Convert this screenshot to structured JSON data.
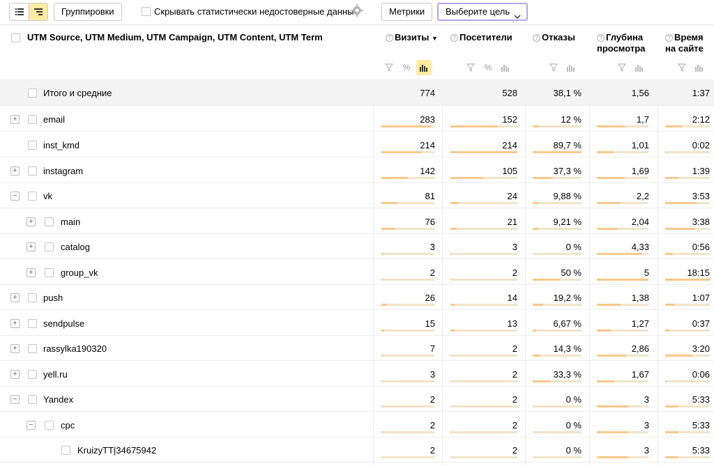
{
  "toolbar": {
    "groupings_label": "Группировки",
    "hide_unreliable_label": "Скрывать статистически недостоверные данные",
    "metrics_label": "Метрики",
    "goal_label": "Выберите цель"
  },
  "table": {
    "dimension_header": "UTM Source, UTM Medium, UTM Campaign, UTM Content, UTM Term",
    "columns": [
      {
        "label": "Визиты",
        "sort": "▼"
      },
      {
        "label": "Посетители"
      },
      {
        "label": "Отказы"
      },
      {
        "label": "Глубина просмотра",
        "line1": "Глубина",
        "line2": "просмотра"
      },
      {
        "label": "Время на сайте",
        "line1": "Время",
        "line2": "на сайте"
      }
    ],
    "total": {
      "label": "Итого и средние",
      "visits": "774",
      "visitors": "528",
      "bounce": "38,1 %",
      "depth": "1,56",
      "time": "1:37"
    },
    "rows": [
      {
        "label": "email",
        "visits": "283",
        "visitors": "152",
        "bounce": "12 %",
        "depth": "1,7",
        "time": "2:12"
      },
      {
        "label": "inst_kmd",
        "visits": "214",
        "visitors": "214",
        "bounce": "89,7 %",
        "depth": "1,01",
        "time": "0:02"
      },
      {
        "label": "instagram",
        "visits": "142",
        "visitors": "105",
        "bounce": "37,3 %",
        "depth": "1,69",
        "time": "1:39"
      },
      {
        "label": "vk",
        "visits": "81",
        "visitors": "24",
        "bounce": "9,88 %",
        "depth": "2,2",
        "time": "3:53"
      },
      {
        "label": "main",
        "visits": "76",
        "visitors": "21",
        "bounce": "9,21 %",
        "depth": "2,04",
        "time": "3:38"
      },
      {
        "label": "catalog",
        "visits": "3",
        "visitors": "3",
        "bounce": "0 %",
        "depth": "4,33",
        "time": "0:56"
      },
      {
        "label": "group_vk",
        "visits": "2",
        "visitors": "2",
        "bounce": "50 %",
        "depth": "5",
        "time": "18:15"
      },
      {
        "label": "push",
        "visits": "26",
        "visitors": "14",
        "bounce": "19,2 %",
        "depth": "1,38",
        "time": "1:07"
      },
      {
        "label": "sendpulse",
        "visits": "15",
        "visitors": "13",
        "bounce": "6,67 %",
        "depth": "1,27",
        "time": "0:37"
      },
      {
        "label": "rassylka190320",
        "visits": "7",
        "visitors": "2",
        "bounce": "14,3 %",
        "depth": "2,86",
        "time": "3:20"
      },
      {
        "label": "yell.ru",
        "visits": "3",
        "visitors": "2",
        "bounce": "33,3 %",
        "depth": "1,67",
        "time": "0:06"
      },
      {
        "label": "Yandex",
        "visits": "2",
        "visitors": "2",
        "bounce": "0 %",
        "depth": "3",
        "time": "5:33"
      },
      {
        "label": "cpc",
        "visits": "2",
        "visitors": "2",
        "bounce": "0 %",
        "depth": "3",
        "time": "5:33"
      },
      {
        "label": "KruizyTT|34675942",
        "visits": "2",
        "visitors": "2",
        "bounce": "0 %",
        "depth": "3",
        "time": "5:33"
      }
    ]
  },
  "icons": {
    "flat_view": "list-icon",
    "tree_view": "tree-icon",
    "settings": "gear-icon",
    "filter": "filter-icon",
    "percent": "percent-icon",
    "bars": "bar-chart-icon",
    "help": "question-icon",
    "expand": "plus-icon",
    "collapse": "minus-icon"
  },
  "colors": {
    "accent": "#ffeba0",
    "bar": "#f8c88a",
    "goal_border": "#b3a6ef"
  }
}
